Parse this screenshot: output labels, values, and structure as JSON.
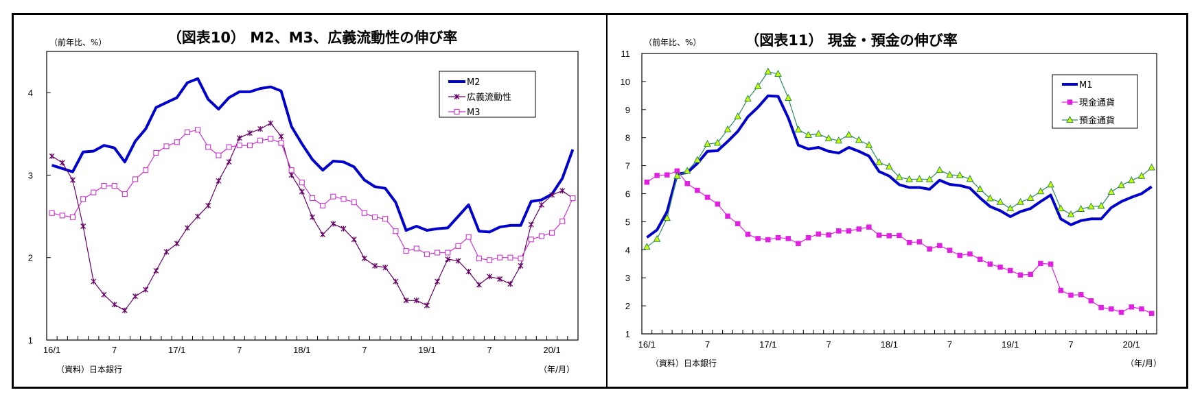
{
  "chart_data": [
    {
      "type": "line",
      "title": "（図表10） M2、M3、広義流動性の伸び率",
      "ylabel": "（前年比、%）",
      "xlabel": "（年/月）",
      "source": "（資料）日本銀行",
      "ylim": [
        1,
        4.5
      ],
      "yticks": [
        1,
        2,
        3,
        4
      ],
      "grid": false,
      "legend_position": "top-right",
      "x_tick_labels": [
        {
          "index": 0,
          "label": "16/1"
        },
        {
          "index": 6,
          "label": "7"
        },
        {
          "index": 12,
          "label": "17/1"
        },
        {
          "index": 18,
          "label": "7"
        },
        {
          "index": 24,
          "label": "18/1"
        },
        {
          "index": 30,
          "label": "7"
        },
        {
          "index": 36,
          "label": "19/1"
        },
        {
          "index": 42,
          "label": "7"
        },
        {
          "index": 48,
          "label": "20/1"
        }
      ],
      "n_points": 51,
      "series": [
        {
          "name": "M2",
          "color": "#0000cc",
          "marker": "none",
          "line_width": "thick",
          "values": [
            3.12,
            3.08,
            3.04,
            3.28,
            3.29,
            3.36,
            3.33,
            3.16,
            3.41,
            3.56,
            3.82,
            3.88,
            3.94,
            4.12,
            4.17,
            3.92,
            3.8,
            3.94,
            4.01,
            4.01,
            4.05,
            4.07,
            4.02,
            3.59,
            3.38,
            3.19,
            3.06,
            3.17,
            3.16,
            3.1,
            2.94,
            2.86,
            2.84,
            2.67,
            2.33,
            2.38,
            2.33,
            2.35,
            2.36,
            2.5,
            2.64,
            2.32,
            2.31,
            2.37,
            2.39,
            2.39,
            2.68,
            2.7,
            2.77,
            2.96,
            3.31
          ]
        },
        {
          "name": "広義流動性",
          "color": "#660066",
          "marker": "x",
          "line_width": "thin",
          "values": [
            3.23,
            3.15,
            2.94,
            2.38,
            1.71,
            1.55,
            1.43,
            1.36,
            1.53,
            1.61,
            1.84,
            2.07,
            2.17,
            2.36,
            2.5,
            2.63,
            2.93,
            3.16,
            3.45,
            3.51,
            3.56,
            3.63,
            3.47,
            3.0,
            2.8,
            2.49,
            2.28,
            2.41,
            2.35,
            2.22,
            1.99,
            1.9,
            1.88,
            1.71,
            1.48,
            1.48,
            1.42,
            1.71,
            1.98,
            1.96,
            1.83,
            1.67,
            1.77,
            1.74,
            1.68,
            1.9,
            2.4,
            2.64,
            2.76,
            2.81,
            2.72
          ]
        },
        {
          "name": "M3",
          "color": "#cc33cc",
          "marker": "open-square",
          "line_width": "thin",
          "values": [
            2.54,
            2.51,
            2.49,
            2.71,
            2.79,
            2.87,
            2.87,
            2.77,
            2.95,
            3.06,
            3.27,
            3.35,
            3.4,
            3.52,
            3.55,
            3.34,
            3.24,
            3.34,
            3.36,
            3.36,
            3.42,
            3.44,
            3.39,
            3.06,
            2.91,
            2.72,
            2.63,
            2.74,
            2.71,
            2.67,
            2.54,
            2.49,
            2.47,
            2.32,
            2.08,
            2.11,
            2.04,
            2.06,
            2.06,
            2.14,
            2.25,
            1.99,
            1.97,
            2.0,
            2.0,
            1.99,
            2.22,
            2.26,
            2.3,
            2.44,
            2.72
          ]
        }
      ]
    },
    {
      "type": "line",
      "title": "（図表11） 現金・預金の伸び率",
      "ylabel": "（前年比、%）",
      "xlabel": "（年/月）",
      "source": "（資料）日本銀行",
      "ylim": [
        1,
        11
      ],
      "yticks": [
        1,
        2,
        3,
        4,
        5,
        6,
        7,
        8,
        9,
        10,
        11
      ],
      "grid": false,
      "legend_position": "top-right",
      "x_tick_labels": [
        {
          "index": 0,
          "label": "16/1"
        },
        {
          "index": 6,
          "label": "7"
        },
        {
          "index": 12,
          "label": "17/1"
        },
        {
          "index": 18,
          "label": "7"
        },
        {
          "index": 24,
          "label": "18/1"
        },
        {
          "index": 30,
          "label": "7"
        },
        {
          "index": 36,
          "label": "19/1"
        },
        {
          "index": 42,
          "label": "7"
        },
        {
          "index": 48,
          "label": "20/1"
        }
      ],
      "n_points": 51,
      "series": [
        {
          "name": "M1",
          "color": "#0000cc",
          "marker": "none",
          "line_width": "thick",
          "values": [
            4.44,
            4.71,
            5.36,
            6.7,
            6.75,
            7.08,
            7.51,
            7.53,
            7.86,
            8.22,
            8.74,
            9.08,
            9.49,
            9.47,
            8.71,
            7.73,
            7.59,
            7.65,
            7.51,
            7.45,
            7.65,
            7.51,
            7.34,
            6.79,
            6.63,
            6.32,
            6.22,
            6.22,
            6.16,
            6.48,
            6.33,
            6.29,
            6.2,
            5.85,
            5.54,
            5.39,
            5.18,
            5.36,
            5.47,
            5.72,
            5.95,
            5.1,
            4.89,
            5.04,
            5.1,
            5.1,
            5.5,
            5.72,
            5.87,
            6.0,
            6.25
          ]
        },
        {
          "name": "現金通貨",
          "color": "#e020e0",
          "marker": "filled-square",
          "line_width": "thin",
          "values": [
            6.41,
            6.65,
            6.67,
            6.81,
            6.36,
            6.12,
            5.87,
            5.63,
            5.2,
            4.93,
            4.55,
            4.4,
            4.36,
            4.43,
            4.4,
            4.22,
            4.43,
            4.56,
            4.53,
            4.67,
            4.67,
            4.74,
            4.81,
            4.52,
            4.5,
            4.51,
            4.26,
            4.28,
            4.03,
            4.15,
            3.98,
            3.8,
            3.85,
            3.66,
            3.49,
            3.38,
            3.26,
            3.1,
            3.12,
            3.51,
            3.49,
            2.55,
            2.38,
            2.4,
            2.18,
            1.94,
            1.89,
            1.77,
            1.96,
            1.89,
            1.73
          ]
        },
        {
          "name": "預金通貨",
          "color": "#2e8b57",
          "marker": "triangle",
          "marker_fill": "#ccff00",
          "line_width": "thin",
          "values": [
            4.1,
            4.38,
            5.13,
            6.63,
            6.81,
            7.2,
            7.77,
            7.81,
            8.29,
            8.75,
            9.38,
            9.83,
            10.35,
            10.27,
            9.41,
            8.28,
            8.09,
            8.13,
            7.97,
            7.89,
            8.1,
            7.91,
            7.73,
            7.12,
            6.96,
            6.59,
            6.51,
            6.52,
            6.51,
            6.84,
            6.67,
            6.65,
            6.52,
            6.16,
            5.83,
            5.7,
            5.47,
            5.7,
            5.84,
            6.08,
            6.32,
            5.47,
            5.26,
            5.45,
            5.54,
            5.56,
            6.06,
            6.3,
            6.47,
            6.63,
            6.93
          ]
        }
      ]
    }
  ]
}
